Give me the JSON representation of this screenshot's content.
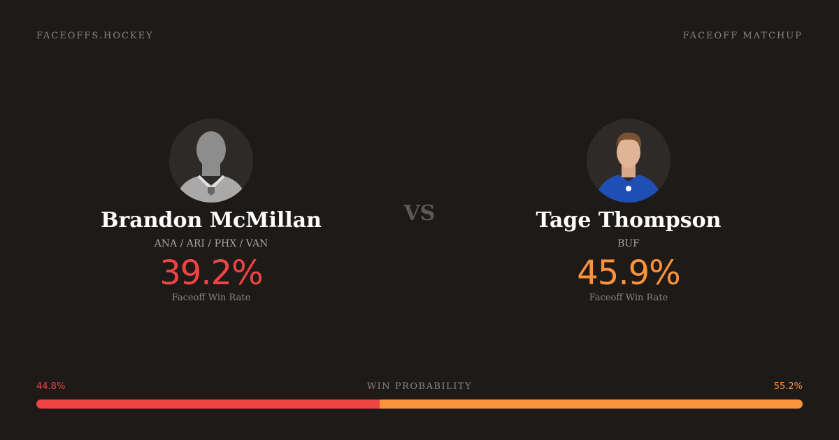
{
  "header": {
    "brand": "FACEOFFS.HOCKEY",
    "section": "FACEOFF MATCHUP"
  },
  "players": [
    {
      "name": "Brandon McMillan",
      "teams": "ANA / ARI / PHX / VAN",
      "win_rate": "39.2%",
      "win_rate_label": "Faceoff Win Rate"
    },
    {
      "name": "Tage Thompson",
      "teams": "BUF",
      "win_rate": "45.9%",
      "win_rate_label": "Faceoff Win Rate"
    }
  ],
  "versus": "VS",
  "win_probability": {
    "title": "WIN PROBABILITY",
    "left": {
      "value": 44.8,
      "label": "44.8%",
      "color": "#ef4444"
    },
    "right": {
      "value": 55.2,
      "label": "55.2%",
      "color": "#fb923c"
    }
  }
}
